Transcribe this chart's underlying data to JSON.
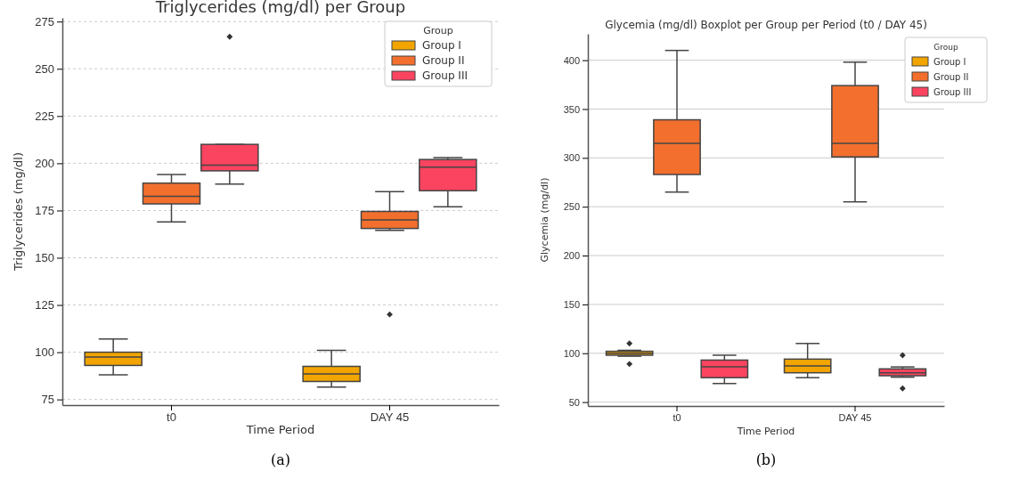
{
  "chart_data": [
    {
      "type": "box",
      "title": "Triglycerides (mg/dl) per Group",
      "xlabel": "Time Period",
      "ylabel": "Triglycerides (mg/dl)",
      "legend_title": "Group",
      "categories": [
        "t0",
        "DAY 45"
      ],
      "ylim": [
        72,
        277
      ],
      "yticks": [
        75,
        100,
        125,
        150,
        175,
        200,
        225,
        250,
        275
      ],
      "grid": "y",
      "line_style": "dashed",
      "legend": "top right",
      "annotations": [
        "(a)"
      ],
      "series": [
        {
          "name": "Group I",
          "color": "#f2a500",
          "boxes": [
            {
              "low": 88,
              "q1": 93,
              "median": 97.5,
              "q3": 100,
              "high": 107
            },
            {
              "low": 81.5,
              "q1": 84.5,
              "median": 88.5,
              "q3": 92.5,
              "high": 101
            }
          ]
        },
        {
          "name": "Group II",
          "color": "#f26f2e",
          "boxes": [
            {
              "low": 169,
              "q1": 178.5,
              "median": 182.5,
              "q3": 189.5,
              "high": 194
            },
            {
              "low": 164.5,
              "q1": 165.5,
              "median": 170,
              "q3": 174.5,
              "high": 185,
              "outliers": [
                120
              ]
            }
          ]
        },
        {
          "name": "Group III",
          "color": "#fb4460",
          "boxes": [
            {
              "low": 189,
              "q1": 196,
              "median": 199,
              "q3": 210,
              "high": 210,
              "outliers": [
                267
              ]
            },
            {
              "low": 177,
              "q1": 185.5,
              "median": 198,
              "q3": 202,
              "high": 203
            }
          ]
        }
      ]
    },
    {
      "type": "box",
      "title": "Glycemia (mg/dl) Boxplot per Group per Period (t0 / DAY 45)",
      "xlabel": "Time Period",
      "ylabel": "Glycemia (mg/dl)",
      "legend_title": "Group",
      "categories": [
        "t0",
        "DAY 45"
      ],
      "ylim": [
        46,
        427
      ],
      "yticks": [
        50,
        100,
        150,
        200,
        250,
        300,
        350,
        400
      ],
      "grid": "y",
      "line_style": "solid",
      "legend": "top right",
      "annotations": [
        "(b)"
      ],
      "series": [
        {
          "name": "Group I",
          "color": "#f2a500",
          "boxes": [
            {
              "low": 97,
              "q1": 98,
              "median": 100,
              "q3": 102,
              "high": 103,
              "outliers": [
                110,
                89
              ]
            },
            {
              "low": 75,
              "q1": 80,
              "median": 87,
              "q3": 94,
              "high": 110
            }
          ]
        },
        {
          "name": "Group II",
          "color": "#f26f2e",
          "boxes": [
            {
              "low": 265,
              "q1": 283,
              "median": 315,
              "q3": 339,
              "high": 410
            },
            {
              "low": 255,
              "q1": 301,
              "median": 315,
              "q3": 374,
              "high": 398
            }
          ]
        },
        {
          "name": "Group III",
          "color": "#fb4460",
          "boxes": [
            {
              "low": 69,
              "q1": 75,
              "median": 86,
              "q3": 93,
              "high": 98
            },
            {
              "low": 75.5,
              "q1": 77,
              "median": 80,
              "q3": 84,
              "high": 86,
              "outliers": [
                98,
                64
              ]
            }
          ]
        }
      ]
    }
  ]
}
